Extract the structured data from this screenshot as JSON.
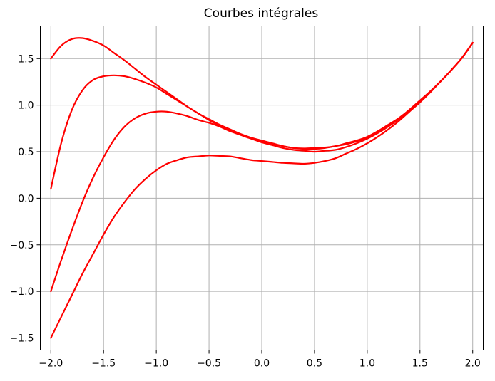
{
  "chart_data": {
    "type": "line",
    "title": "Courbes intégrales",
    "xlabel": "",
    "ylabel": "",
    "xlim": [
      -2.1,
      2.1
    ],
    "ylim": [
      -1.63,
      1.85
    ],
    "grid": true,
    "x_ticks": [
      -2.0,
      -1.5,
      -1.0,
      -0.5,
      0.0,
      0.5,
      1.0,
      1.5,
      2.0
    ],
    "x_tick_labels": [
      "−2.0",
      "−1.5",
      "−1.0",
      "−0.5",
      "0.0",
      "0.5",
      "1.0",
      "1.5",
      "2.0"
    ],
    "y_ticks": [
      -1.5,
      -1.0,
      -0.5,
      0.0,
      0.5,
      1.0,
      1.5
    ],
    "y_tick_labels": [
      "−1.5",
      "−1.0",
      "−0.5",
      "0.0",
      "0.5",
      "1.0",
      "1.5"
    ],
    "line_color": "#ff0000",
    "series": [
      {
        "x": [
          -2.0,
          -1.9,
          -1.8,
          -1.7,
          -1.6,
          -1.5,
          -1.4,
          -1.3,
          -1.2,
          -1.1,
          -1.0,
          -0.9,
          -0.8,
          -0.7,
          -0.6,
          -0.5,
          -0.4,
          -0.3,
          -0.2,
          -0.1,
          0.0,
          0.1,
          0.2,
          0.3,
          0.4,
          0.5,
          0.6,
          0.7,
          0.8,
          0.9,
          1.0,
          1.1,
          1.2,
          1.3,
          1.4,
          1.5,
          1.6,
          1.7,
          1.8,
          1.9,
          2.0
        ],
        "y": [
          1.5,
          1.64,
          1.71,
          1.72,
          1.69,
          1.64,
          1.56,
          1.48,
          1.39,
          1.3,
          1.22,
          1.14,
          1.06,
          0.98,
          0.91,
          0.84,
          0.78,
          0.73,
          0.68,
          0.64,
          0.61,
          0.58,
          0.56,
          0.54,
          0.535,
          0.54,
          0.545,
          0.56,
          0.59,
          0.62,
          0.66,
          0.72,
          0.79,
          0.86,
          0.95,
          1.05,
          1.15,
          1.26,
          1.38,
          1.51,
          1.67
        ]
      },
      {
        "x": [
          -2.0,
          -1.9,
          -1.8,
          -1.7,
          -1.6,
          -1.5,
          -1.4,
          -1.3,
          -1.2,
          -1.1,
          -1.0,
          -0.9,
          -0.8,
          -0.7,
          -0.6,
          -0.5,
          -0.4,
          -0.3,
          -0.2,
          -0.1,
          0.0,
          0.1,
          0.2,
          0.3,
          0.4,
          0.5,
          0.6,
          0.7,
          0.8,
          0.9,
          1.0,
          1.1,
          1.2,
          1.3,
          1.4,
          1.5,
          1.6,
          1.7,
          1.8,
          1.9,
          2.0
        ],
        "y": [
          0.1,
          0.6,
          0.95,
          1.16,
          1.27,
          1.31,
          1.32,
          1.31,
          1.28,
          1.24,
          1.19,
          1.12,
          1.05,
          0.98,
          0.91,
          0.85,
          0.79,
          0.74,
          0.69,
          0.65,
          0.62,
          0.59,
          0.56,
          0.54,
          0.53,
          0.53,
          0.54,
          0.56,
          0.58,
          0.61,
          0.65,
          0.71,
          0.78,
          0.86,
          0.95,
          1.05,
          1.15,
          1.26,
          1.38,
          1.51,
          1.67
        ]
      },
      {
        "x": [
          -2.0,
          -1.9,
          -1.8,
          -1.7,
          -1.6,
          -1.5,
          -1.4,
          -1.3,
          -1.2,
          -1.1,
          -1.0,
          -0.9,
          -0.8,
          -0.7,
          -0.6,
          -0.5,
          -0.4,
          -0.3,
          -0.2,
          -0.1,
          0.0,
          0.1,
          0.2,
          0.3,
          0.4,
          0.5,
          0.6,
          0.7,
          0.8,
          0.9,
          1.0,
          1.1,
          1.2,
          1.3,
          1.4,
          1.5,
          1.6,
          1.7,
          1.8,
          1.9,
          2.0
        ],
        "y": [
          -1.0,
          -0.66,
          -0.34,
          -0.04,
          0.22,
          0.44,
          0.63,
          0.77,
          0.86,
          0.91,
          0.93,
          0.93,
          0.91,
          0.88,
          0.84,
          0.81,
          0.77,
          0.72,
          0.68,
          0.64,
          0.6,
          0.57,
          0.54,
          0.52,
          0.51,
          0.5,
          0.51,
          0.52,
          0.55,
          0.59,
          0.64,
          0.7,
          0.77,
          0.85,
          0.94,
          1.04,
          1.15,
          1.26,
          1.38,
          1.51,
          1.67
        ]
      },
      {
        "x": [
          -2.0,
          -1.9,
          -1.8,
          -1.7,
          -1.6,
          -1.5,
          -1.4,
          -1.3,
          -1.2,
          -1.1,
          -1.0,
          -0.9,
          -0.8,
          -0.7,
          -0.6,
          -0.5,
          -0.4,
          -0.3,
          -0.2,
          -0.1,
          0.0,
          0.1,
          0.2,
          0.3,
          0.4,
          0.5,
          0.6,
          0.7,
          0.8,
          0.9,
          1.0,
          1.1,
          1.2,
          1.3,
          1.4,
          1.5,
          1.6,
          1.7,
          1.8,
          1.9,
          2.0
        ],
        "y": [
          -1.5,
          -1.27,
          -1.04,
          -0.81,
          -0.6,
          -0.39,
          -0.2,
          -0.04,
          0.1,
          0.21,
          0.3,
          0.37,
          0.41,
          0.44,
          0.45,
          0.46,
          0.455,
          0.45,
          0.43,
          0.41,
          0.4,
          0.39,
          0.38,
          0.375,
          0.37,
          0.38,
          0.4,
          0.43,
          0.48,
          0.53,
          0.59,
          0.66,
          0.74,
          0.83,
          0.93,
          1.03,
          1.14,
          1.26,
          1.38,
          1.51,
          1.67
        ]
      }
    ]
  }
}
